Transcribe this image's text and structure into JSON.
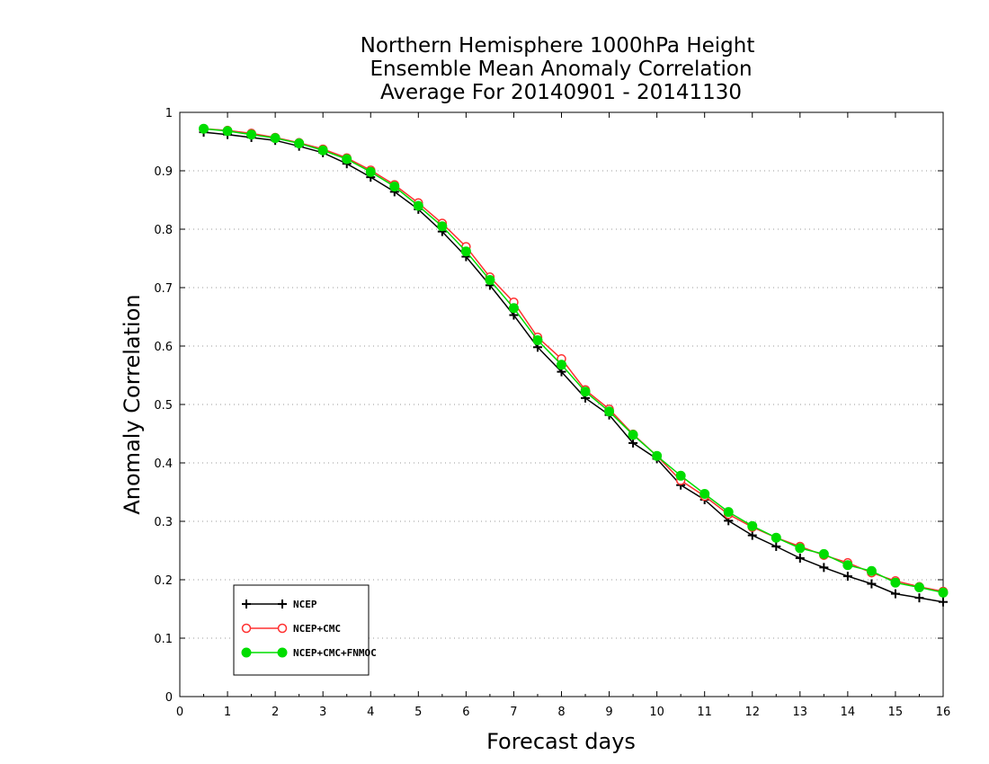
{
  "chart_data": {
    "type": "line",
    "title": [
      "Northern Hemisphere 1000hPa Height",
      "Ensemble Mean Anomaly Correlation",
      "Average For 20140901 - 20141130"
    ],
    "xlabel": "Forecast days",
    "ylabel": "Anomaly Correlation",
    "xlim": [
      0,
      16
    ],
    "ylim": [
      0,
      1
    ],
    "xticks": [
      "0",
      "1",
      "2",
      "3",
      "4",
      "5",
      "6",
      "7",
      "8",
      "9",
      "10",
      "11",
      "12",
      "13",
      "14",
      "15",
      "16"
    ],
    "yticks": [
      "0",
      "0.1",
      "0.2",
      "0.3",
      "0.4",
      "0.5",
      "0.6",
      "0.7",
      "0.8",
      "0.9",
      "1"
    ],
    "grid": "horizontal dotted",
    "legend_position": "bottom-left",
    "x": [
      0.5,
      1,
      1.5,
      2,
      2.5,
      3,
      3.5,
      4,
      4.5,
      5,
      5.5,
      6,
      6.5,
      7,
      7.5,
      8,
      8.5,
      9,
      9.5,
      10,
      10.5,
      11,
      11.5,
      12,
      12.5,
      13,
      13.5,
      14,
      14.5,
      15,
      15.5,
      16
    ],
    "series": [
      {
        "name": "NCEP",
        "color": "#000000",
        "marker": "plus",
        "values": [
          0.966,
          0.962,
          0.957,
          0.952,
          0.942,
          0.931,
          0.912,
          0.889,
          0.864,
          0.834,
          0.796,
          0.753,
          0.704,
          0.653,
          0.598,
          0.556,
          0.511,
          0.482,
          0.434,
          0.407,
          0.362,
          0.337,
          0.301,
          0.276,
          0.257,
          0.237,
          0.221,
          0.206,
          0.193,
          0.176,
          0.169,
          0.162
        ]
      },
      {
        "name": "NCEP+CMC",
        "color": "#ff3030",
        "marker": "open-circle",
        "values": [
          0.972,
          0.969,
          0.964,
          0.957,
          0.948,
          0.937,
          0.922,
          0.901,
          0.876,
          0.845,
          0.81,
          0.77,
          0.718,
          0.675,
          0.615,
          0.578,
          0.525,
          0.492,
          0.449,
          0.412,
          0.37,
          0.343,
          0.312,
          0.29,
          0.272,
          0.257,
          0.242,
          0.229,
          0.212,
          0.198,
          0.188,
          0.18
        ]
      },
      {
        "name": "NCEP+CMC+FNMOC",
        "color": "#00dd00",
        "marker": "filled-circle",
        "values": [
          0.972,
          0.968,
          0.962,
          0.956,
          0.947,
          0.935,
          0.92,
          0.898,
          0.873,
          0.84,
          0.805,
          0.762,
          0.713,
          0.665,
          0.61,
          0.568,
          0.522,
          0.488,
          0.448,
          0.412,
          0.378,
          0.347,
          0.316,
          0.292,
          0.272,
          0.254,
          0.244,
          0.225,
          0.215,
          0.195,
          0.187,
          0.178
        ]
      }
    ]
  }
}
